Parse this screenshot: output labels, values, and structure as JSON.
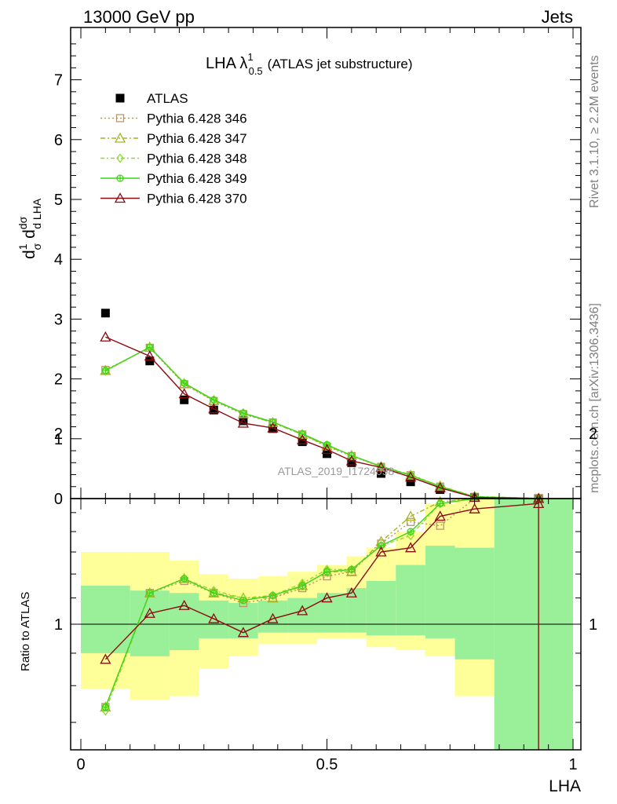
{
  "header": {
    "left": "13000 GeV pp",
    "right": "Jets"
  },
  "title": {
    "main": "LHA λ",
    "sup": "1",
    "sub": "0.5",
    "suffix": "(ATLAS jet substructure)"
  },
  "side_labels": {
    "rivet": "Rivet 3.1.10, ≥ 2.2M events",
    "mcplots": "mcplots.cern.ch [arXiv:1306.3436]"
  },
  "watermark": "ATLAS_2019_I1724098",
  "colors": {
    "data": "#000000",
    "band_inner": "#99f099",
    "band_outer": "#ffff99",
    "p346": "#b8976a",
    "p347": "#a5b524",
    "p348": "#8fdb2d",
    "p349": "#3fd617",
    "p370": "#8b0a10"
  },
  "chart_data": [
    {
      "type": "line",
      "panel": "main",
      "ylabel": "1/σ dσ/d LHA",
      "ylim": [
        0,
        7.9
      ],
      "xlim": [
        -0.02,
        1.0
      ],
      "yticks": [
        "0",
        "1",
        "2",
        "3",
        "4",
        "5",
        "6",
        "7"
      ],
      "bin_edges": [
        0.0,
        0.1,
        0.18,
        0.24,
        0.3,
        0.36,
        0.42,
        0.48,
        0.54,
        0.58,
        0.64,
        0.7,
        0.76,
        0.84,
        1.0
      ],
      "x": [
        0.05,
        0.14,
        0.21,
        0.27,
        0.33,
        0.39,
        0.45,
        0.5,
        0.55,
        0.61,
        0.67,
        0.73,
        0.8,
        0.93
      ],
      "series": [
        {
          "name": "ATLAS",
          "marker": "filled-square",
          "values": [
            3.1,
            2.3,
            1.65,
            1.48,
            1.3,
            1.17,
            0.95,
            0.75,
            0.6,
            0.42,
            0.28,
            0.15,
            0.02,
            0.001
          ]
        },
        {
          "name": "Pythia 6.428 346",
          "marker": "open-square",
          "style": "dotted",
          "values": [
            2.15,
            2.52,
            1.91,
            1.63,
            1.41,
            1.27,
            1.07,
            0.87,
            0.71,
            0.53,
            0.39,
            0.2,
            0.03,
            0.003
          ]
        },
        {
          "name": "Pythia 6.428 347",
          "marker": "open-triangle",
          "style": "dashdot",
          "values": [
            2.14,
            2.53,
            1.92,
            1.64,
            1.42,
            1.27,
            1.07,
            0.88,
            0.72,
            0.53,
            0.39,
            0.21,
            0.035,
            0.003
          ]
        },
        {
          "name": "Pythia 6.428 348",
          "marker": "open-diamond",
          "style": "dashdot",
          "values": [
            2.13,
            2.53,
            1.93,
            1.65,
            1.43,
            1.28,
            1.08,
            0.89,
            0.72,
            0.54,
            0.4,
            0.21,
            0.03,
            0.003
          ]
        },
        {
          "name": "Pythia 6.428 349",
          "marker": "circle-cross",
          "style": "solid",
          "values": [
            2.14,
            2.53,
            1.93,
            1.65,
            1.43,
            1.28,
            1.08,
            0.9,
            0.72,
            0.54,
            0.39,
            0.2,
            0.03,
            0.003
          ]
        },
        {
          "name": "Pythia 6.428 370",
          "marker": "open-triangle",
          "style": "solid",
          "values": [
            2.7,
            2.38,
            1.75,
            1.5,
            1.26,
            1.18,
            0.98,
            0.82,
            0.63,
            0.52,
            0.36,
            0.18,
            0.02,
            0.0015
          ]
        }
      ]
    },
    {
      "type": "line",
      "panel": "ratio",
      "ylabel": "Ratio to ATLAS",
      "xlabel": "LHA",
      "ylim": [
        0.37,
        2.25
      ],
      "yticks": [
        "0.5",
        "1",
        "2"
      ],
      "xticks": [
        "0",
        "0.5",
        "1"
      ],
      "x": [
        0.05,
        0.14,
        0.21,
        0.27,
        0.33,
        0.39,
        0.45,
        0.5,
        0.55,
        0.61,
        0.67,
        0.73,
        0.8,
        0.93
      ],
      "band_inner": [
        [
          0.9,
          1.15
        ],
        [
          0.89,
          1.13
        ],
        [
          0.91,
          1.12
        ],
        [
          0.95,
          1.09
        ],
        [
          0.95,
          1.08
        ],
        [
          0.97,
          1.09
        ],
        [
          0.97,
          1.1
        ],
        [
          0.97,
          1.12
        ],
        [
          0.97,
          1.14
        ],
        [
          0.96,
          1.17
        ],
        [
          0.96,
          1.24
        ],
        [
          0.95,
          1.33
        ],
        [
          0.88,
          1.32
        ],
        [
          0.63,
          1.9
        ]
      ],
      "band_outer": [
        [
          0.79,
          1.3
        ],
        [
          0.76,
          1.3
        ],
        [
          0.77,
          1.26
        ],
        [
          0.85,
          1.2
        ],
        [
          0.89,
          1.18
        ],
        [
          0.93,
          1.19
        ],
        [
          0.93,
          1.21
        ],
        [
          0.95,
          1.24
        ],
        [
          0.95,
          1.28
        ],
        [
          0.92,
          1.32
        ],
        [
          0.91,
          1.4
        ],
        [
          0.89,
          1.55
        ],
        [
          0.77,
          1.58
        ],
        [
          0.37,
          2.25
        ]
      ],
      "series": [
        {
          "name": "Pythia 6.428 346",
          "values": [
            0.74,
            1.12,
            1.17,
            1.12,
            1.08,
            1.1,
            1.14,
            1.19,
            1.21,
            1.34,
            1.45,
            1.43,
            1.82,
            2.7
          ]
        },
        {
          "name": "Pythia 6.428 347",
          "values": [
            0.74,
            1.12,
            1.18,
            1.12,
            1.1,
            1.1,
            1.15,
            1.21,
            1.21,
            1.35,
            1.48,
            1.56,
            1.97,
            2.7
          ]
        },
        {
          "name": "Pythia 6.428 348",
          "values": [
            0.73,
            1.12,
            1.18,
            1.13,
            1.1,
            1.11,
            1.16,
            1.22,
            1.22,
            1.33,
            1.38,
            1.55,
            1.72,
            2.7
          ]
        },
        {
          "name": "Pythia 6.428 349",
          "values": [
            0.74,
            1.12,
            1.18,
            1.12,
            1.09,
            1.11,
            1.15,
            1.21,
            1.22,
            1.33,
            1.4,
            1.55,
            1.58,
            2.7
          ]
        },
        {
          "name": "Pythia 6.428 370",
          "values": [
            0.88,
            1.04,
            1.07,
            1.02,
            0.97,
            1.02,
            1.05,
            1.1,
            1.12,
            1.3,
            1.32,
            1.48,
            1.52,
            1.55
          ]
        }
      ]
    }
  ]
}
